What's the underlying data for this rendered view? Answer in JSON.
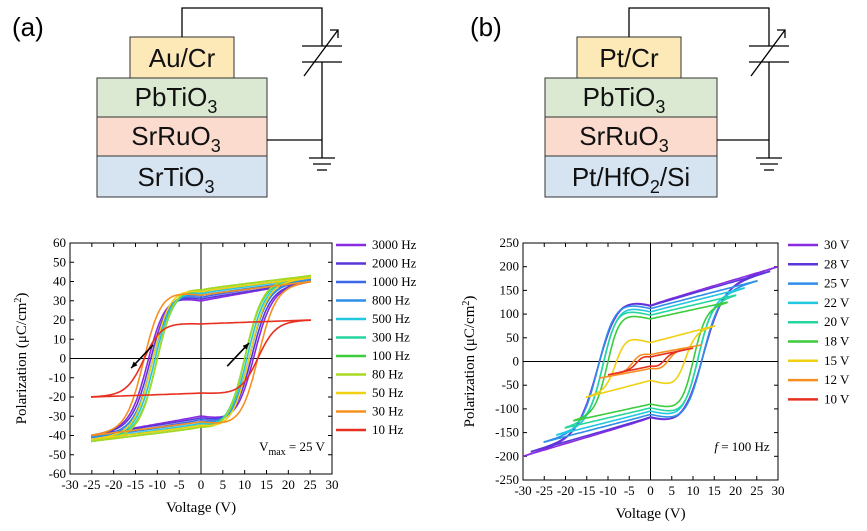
{
  "panels": [
    {
      "label": "(a)",
      "layers": [
        {
          "text": "Au/Cr",
          "color": "#fde9b8"
        },
        {
          "text": "PbTiO",
          "sub": "3",
          "color": "#dbe9d2"
        },
        {
          "text": "SrRuO",
          "sub": "3",
          "color": "#fadbcd"
        },
        {
          "text": "SrTiO",
          "sub": "3",
          "color": "#d6e3f1"
        }
      ]
    },
    {
      "label": "(b)",
      "layers": [
        {
          "text": "Pt/Cr",
          "color": "#fde9b8"
        },
        {
          "text": "PbTiO",
          "sub": "3",
          "color": "#dbe9d2"
        },
        {
          "text": "SrRuO",
          "sub": "3",
          "color": "#fadbcd"
        },
        {
          "text": "Pt/HfO",
          "sub": "2",
          "after": "/Si",
          "color": "#d6e3f1"
        }
      ]
    }
  ],
  "chart_data": [
    {
      "type": "line",
      "xlabel": "Voltage (V)",
      "ylabel_main": "Polarization (μC/cm",
      "ylabel_sup": "2",
      "ylabel_end": ")",
      "xlim": [
        -30,
        30
      ],
      "ylim": [
        -60,
        60
      ],
      "xticks": [
        -30,
        -25,
        -20,
        -15,
        -10,
        -5,
        0,
        5,
        10,
        15,
        20,
        25,
        30
      ],
      "yticks": [
        -60,
        -50,
        -40,
        -30,
        -20,
        -10,
        0,
        10,
        20,
        30,
        40,
        50,
        60
      ],
      "annotation_main": "V",
      "annotation_sub": "max",
      "annotation_end": " = 25 V",
      "legend_position": "right",
      "series": [
        {
          "name": "3000 Hz",
          "color": "#8a2be2",
          "vmax": 25,
          "pr": 30,
          "ps": 40,
          "ec": 12,
          "vs": 25,
          "slope": 0.1
        },
        {
          "name": "2000 Hz",
          "color": "#5a35d8",
          "vmax": 25,
          "pr": 31,
          "ps": 40,
          "ec": 11.5,
          "vs": 25,
          "slope": 0.1
        },
        {
          "name": "1000 Hz",
          "color": "#3a66e8",
          "vmax": 25,
          "pr": 32,
          "ps": 41,
          "ec": 11,
          "vs": 25,
          "slope": 0.1
        },
        {
          "name": "800 Hz",
          "color": "#2f8ee8",
          "vmax": 25,
          "pr": 33,
          "ps": 41,
          "ec": 11,
          "vs": 25,
          "slope": 0.1
        },
        {
          "name": "500 Hz",
          "color": "#22c8e0",
          "vmax": 25,
          "pr": 34,
          "ps": 42,
          "ec": 10.5,
          "vs": 25,
          "slope": 0.1
        },
        {
          "name": "300 Hz",
          "color": "#26d6a0",
          "vmax": 25,
          "pr": 35,
          "ps": 42,
          "ec": 10,
          "vs": 25,
          "slope": 0.1
        },
        {
          "name": "100 Hz",
          "color": "#3ccc3c",
          "vmax": 25,
          "pr": 36,
          "ps": 43,
          "ec": 10,
          "vs": 25,
          "slope": 0.1
        },
        {
          "name": "80 Hz",
          "color": "#a8d820",
          "vmax": 25,
          "pr": 36,
          "ps": 43,
          "ec": 10,
          "vs": 25,
          "slope": 0.1
        },
        {
          "name": "50 Hz",
          "color": "#f0d010",
          "vmax": 25,
          "pr": 35,
          "ps": 42,
          "ec": 11,
          "vs": 25,
          "slope": 0.1
        },
        {
          "name": "30 Hz",
          "color": "#f59020",
          "vmax": 25,
          "pr": 33,
          "ps": 40,
          "ec": 13,
          "vs": 25,
          "slope": 0.1
        },
        {
          "name": "10 Hz",
          "color": "#e83020",
          "vmax": 25,
          "pr": 18,
          "ps": 20,
          "ec": 13,
          "vs": 25,
          "slope": 0.05
        }
      ]
    },
    {
      "type": "line",
      "xlabel": "Voltage (V)",
      "ylabel_main": "Polarization (μC/cm",
      "ylabel_sup": "2",
      "ylabel_end": ")",
      "xlim": [
        -30,
        30
      ],
      "ylim": [
        -250,
        250
      ],
      "xticks": [
        -30,
        -25,
        -20,
        -15,
        -10,
        -5,
        0,
        5,
        10,
        15,
        20,
        25,
        30
      ],
      "yticks": [
        -250,
        -200,
        -150,
        -100,
        -50,
        0,
        50,
        100,
        150,
        200,
        250
      ],
      "annotation_main": "f",
      "annotation_end": " = 100 Hz",
      "legend_position": "right",
      "series": [
        {
          "name": "30 V",
          "color": "#8a2be2",
          "vmax": 30,
          "pr": 120,
          "ps": 200,
          "ec": 12
        },
        {
          "name": "28 V",
          "color": "#5a35d8",
          "vmax": 28,
          "pr": 118,
          "ps": 190,
          "ec": 12
        },
        {
          "name": "25 V",
          "color": "#2f8ee8",
          "vmax": 25,
          "pr": 112,
          "ps": 170,
          "ec": 12
        },
        {
          "name": "22 V",
          "color": "#22c8e0",
          "vmax": 22,
          "pr": 105,
          "ps": 155,
          "ec": 11
        },
        {
          "name": "20 V",
          "color": "#26d6a0",
          "vmax": 20,
          "pr": 98,
          "ps": 140,
          "ec": 11
        },
        {
          "name": "18 V",
          "color": "#3ccc3c",
          "vmax": 18,
          "pr": 90,
          "ps": 125,
          "ec": 10
        },
        {
          "name": "15 V",
          "color": "#f0d010",
          "vmax": 15,
          "pr": 40,
          "ps": 75,
          "ec": 8
        },
        {
          "name": "12 V",
          "color": "#f59020",
          "vmax": 12,
          "pr": 15,
          "ps": 35,
          "ec": 4
        },
        {
          "name": "10 V",
          "color": "#e83020",
          "vmax": 10,
          "pr": 10,
          "ps": 28,
          "ec": 3
        }
      ]
    }
  ]
}
